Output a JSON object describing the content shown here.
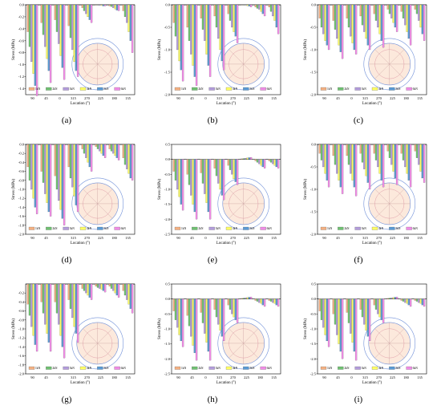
{
  "figure": {
    "series_colors": [
      "#f4b183",
      "#70c172",
      "#b39ddb",
      "#ffff66",
      "#5b9bd5",
      "#f08de6"
    ]
  },
  "chart_data": [
    {
      "id": "a",
      "caption": "(a)",
      "type": "bar",
      "xlabel": "Location (°)",
      "ylabel": "Stress (MPa)",
      "ylim": [
        -1.5,
        0
      ],
      "yticks": [
        "0.0",
        "-0.2",
        "-0.4",
        "-0.6",
        "-0.8",
        "-1.0",
        "-1.2",
        "-1.4"
      ],
      "categories": [
        "90",
        "45",
        "0",
        "315",
        "270",
        "225",
        "180",
        "135"
      ],
      "series": [
        {
          "name": "1kN",
          "values": [
            -0.45,
            -0.3,
            -0.25,
            -0.35,
            -0.05,
            0.0,
            -0.02,
            -0.1
          ]
        },
        {
          "name": "2kN",
          "values": [
            -0.7,
            -0.5,
            -0.45,
            -0.55,
            -0.1,
            0.0,
            -0.03,
            -0.2
          ]
        },
        {
          "name": "3kN",
          "values": [
            -0.95,
            -0.7,
            -0.65,
            -0.75,
            -0.15,
            -0.01,
            -0.05,
            -0.3
          ]
        },
        {
          "name": "4kN",
          "values": [
            -1.15,
            -0.9,
            -0.85,
            -0.95,
            -0.2,
            -0.01,
            -0.07,
            -0.45
          ]
        },
        {
          "name": "5kN",
          "values": [
            -1.35,
            -1.1,
            -1.05,
            -1.1,
            -0.25,
            -0.02,
            -0.09,
            -0.6
          ]
        },
        {
          "name": "6kN",
          "values": [
            -1.52,
            -1.3,
            -1.25,
            -1.2,
            -0.3,
            -0.02,
            -0.1,
            -0.8
          ]
        }
      ]
    },
    {
      "id": "b",
      "caption": "(b)",
      "type": "bar",
      "xlabel": "Location (°)",
      "ylabel": "Stress (MPa)",
      "ylim": [
        -2.0,
        0
      ],
      "yticks": [
        "0.0",
        "-0.5",
        "-1.0",
        "-1.5",
        "-2.0"
      ],
      "categories": [
        "90",
        "45",
        "0",
        "315",
        "270",
        "225",
        "180",
        "135"
      ],
      "series": [
        {
          "name": "1kN",
          "values": [
            -0.4,
            -0.5,
            -0.3,
            -0.25,
            -0.2,
            0.0,
            -0.05,
            -0.05
          ]
        },
        {
          "name": "2kN",
          "values": [
            -0.7,
            -0.8,
            -0.55,
            -0.5,
            -0.35,
            0.0,
            -0.08,
            -0.15
          ]
        },
        {
          "name": "3kN",
          "values": [
            -1.0,
            -1.1,
            -0.8,
            -0.75,
            -0.5,
            0.0,
            -0.1,
            -0.25
          ]
        },
        {
          "name": "4kN",
          "values": [
            -1.25,
            -1.35,
            -1.1,
            -1.0,
            -0.6,
            -0.02,
            -0.15,
            -0.35
          ]
        },
        {
          "name": "5kN",
          "values": [
            -1.45,
            -1.6,
            -1.35,
            -1.25,
            -0.7,
            -0.03,
            -0.2,
            -0.5
          ]
        },
        {
          "name": "6kN",
          "values": [
            -1.7,
            -1.8,
            -1.6,
            -1.45,
            -0.85,
            -0.05,
            -0.25,
            -0.65
          ]
        }
      ]
    },
    {
      "id": "c",
      "caption": "(c)",
      "type": "bar",
      "xlabel": "Location (°)",
      "ylabel": "Stress (MPa)",
      "ylim": [
        -2.0,
        0
      ],
      "yticks": [
        "0.0",
        "-0.5",
        "-1.0",
        "-1.5",
        "-2.0"
      ],
      "categories": [
        "90",
        "45",
        "0",
        "315",
        "270",
        "225",
        "180",
        "135"
      ],
      "series": [
        {
          "name": "1kN",
          "values": [
            -0.3,
            -0.35,
            -0.3,
            -0.25,
            -0.2,
            -0.1,
            -0.15,
            -0.1
          ]
        },
        {
          "name": "2kN",
          "values": [
            -0.5,
            -0.55,
            -0.5,
            -0.45,
            -0.35,
            -0.2,
            -0.3,
            -0.2
          ]
        },
        {
          "name": "3kN",
          "values": [
            -0.65,
            -0.75,
            -0.7,
            -0.6,
            -0.5,
            -0.3,
            -0.45,
            -0.35
          ]
        },
        {
          "name": "4kN",
          "values": [
            -0.8,
            -0.9,
            -0.85,
            -0.75,
            -0.65,
            -0.4,
            -0.6,
            -0.5
          ]
        },
        {
          "name": "5kN",
          "values": [
            -0.9,
            -1.05,
            -1.0,
            -0.9,
            -0.8,
            -0.5,
            -0.75,
            -0.65
          ]
        },
        {
          "name": "6kN",
          "values": [
            -1.0,
            -1.2,
            -1.1,
            -1.0,
            -0.95,
            -0.6,
            -0.9,
            -0.8
          ]
        }
      ]
    },
    {
      "id": "d",
      "caption": "(d)",
      "type": "bar",
      "xlabel": "Location (°)",
      "ylabel": "Stress (MPa)",
      "ylim": [
        -2.0,
        0
      ],
      "yticks": [
        "0.0",
        "-0.2",
        "-0.4",
        "-0.6",
        "-0.8",
        "-1.0",
        "-1.2",
        "-1.4",
        "-1.6",
        "-1.8",
        "-2.0"
      ],
      "categories": [
        "90",
        "45",
        "0",
        "315",
        "270",
        "225",
        "180",
        "135"
      ],
      "series": [
        {
          "name": "1kN",
          "values": [
            -0.5,
            -0.6,
            -0.7,
            -0.5,
            -0.1,
            -0.05,
            -0.1,
            -0.3
          ]
        },
        {
          "name": "2kN",
          "values": [
            -0.8,
            -0.85,
            -1.0,
            -0.75,
            -0.2,
            -0.1,
            -0.15,
            -0.45
          ]
        },
        {
          "name": "3kN",
          "values": [
            -1.0,
            -1.1,
            -1.25,
            -0.95,
            -0.3,
            -0.15,
            -0.2,
            -0.55
          ]
        },
        {
          "name": "4kN",
          "values": [
            -1.2,
            -1.3,
            -1.45,
            -1.15,
            -0.4,
            -0.2,
            -0.25,
            -0.65
          ]
        },
        {
          "name": "5kN",
          "values": [
            -1.4,
            -1.5,
            -1.65,
            -1.35,
            -0.5,
            -0.25,
            -0.3,
            -0.75
          ]
        },
        {
          "name": "6kN",
          "values": [
            -1.55,
            -1.6,
            -1.8,
            -1.5,
            -0.6,
            -0.3,
            -0.35,
            -0.8
          ]
        }
      ]
    },
    {
      "id": "e",
      "caption": "(e)",
      "type": "bar",
      "xlabel": "Location (°)",
      "ylabel": "Stress (MPa)",
      "ylim": [
        -2.5,
        0.5
      ],
      "yticks": [
        "0.5",
        "0.0",
        "-0.5",
        "-1.0",
        "-1.5",
        "-2.0",
        "-2.5"
      ],
      "categories": [
        "90",
        "45",
        "0",
        "315",
        "270",
        "225",
        "180",
        "135"
      ],
      "series": [
        {
          "name": "1kN",
          "values": [
            -0.4,
            -0.5,
            -0.45,
            -0.3,
            -0.2,
            0.02,
            -0.05,
            -0.05
          ]
        },
        {
          "name": "2kN",
          "values": [
            -0.7,
            -0.85,
            -0.8,
            -0.55,
            -0.35,
            0.03,
            -0.1,
            -0.1
          ]
        },
        {
          "name": "3kN",
          "values": [
            -1.0,
            -1.2,
            -1.15,
            -0.8,
            -0.5,
            0.04,
            -0.15,
            -0.15
          ]
        },
        {
          "name": "4kN",
          "values": [
            -1.25,
            -1.5,
            -1.45,
            -1.0,
            -0.65,
            0.05,
            -0.2,
            -0.2
          ]
        },
        {
          "name": "5kN",
          "values": [
            -1.5,
            -1.75,
            -1.75,
            -1.2,
            -0.75,
            0.06,
            -0.25,
            -0.25
          ]
        },
        {
          "name": "6kN",
          "values": [
            -1.7,
            -2.0,
            -2.0,
            -1.35,
            -0.85,
            0.07,
            -0.3,
            -0.3
          ]
        }
      ]
    },
    {
      "id": "f",
      "caption": "(f)",
      "type": "bar",
      "xlabel": "Location (°)",
      "ylabel": "Stress (MPa)",
      "ylim": [
        -2.0,
        0
      ],
      "yticks": [
        "0.0",
        "-0.5",
        "-1.0",
        "-1.5",
        "-2.0"
      ],
      "categories": [
        "90",
        "45",
        "0",
        "315",
        "270",
        "225",
        "180",
        "135"
      ],
      "series": [
        {
          "name": "1kN",
          "values": [
            -0.2,
            -0.25,
            -0.25,
            -0.2,
            -0.2,
            -0.15,
            -0.2,
            -0.15
          ]
        },
        {
          "name": "2kN",
          "values": [
            -0.35,
            -0.45,
            -0.45,
            -0.4,
            -0.35,
            -0.3,
            -0.35,
            -0.3
          ]
        },
        {
          "name": "3kN",
          "values": [
            -0.5,
            -0.65,
            -0.65,
            -0.55,
            -0.5,
            -0.45,
            -0.5,
            -0.45
          ]
        },
        {
          "name": "4kN",
          "values": [
            -0.65,
            -0.8,
            -0.8,
            -0.7,
            -0.65,
            -0.6,
            -0.65,
            -0.6
          ]
        },
        {
          "name": "5kN",
          "values": [
            -0.8,
            -0.95,
            -0.95,
            -0.85,
            -0.8,
            -0.75,
            -0.8,
            -0.75
          ]
        },
        {
          "name": "6kN",
          "values": [
            -0.95,
            -1.1,
            -1.15,
            -1.0,
            -0.95,
            -0.9,
            -0.95,
            -0.85
          ]
        }
      ]
    },
    {
      "id": "g",
      "caption": "(g)",
      "type": "bar",
      "xlabel": "Location (°)",
      "ylabel": "Stress (MPa)",
      "ylim": [
        -2.0,
        0
      ],
      "yticks": [
        "-0.2",
        "-0.4",
        "-0.6",
        "-0.8",
        "-1.0",
        "-1.2",
        "-1.4",
        "-1.6",
        "-1.8",
        "-2.0"
      ],
      "categories": [
        "90",
        "45",
        "0",
        "315",
        "270",
        "225",
        "180",
        "135"
      ],
      "series": [
        {
          "name": "1kN",
          "values": [
            -0.45,
            -0.4,
            -0.4,
            -0.35,
            -0.1,
            -0.05,
            -0.05,
            -0.15
          ]
        },
        {
          "name": "2kN",
          "values": [
            -0.7,
            -0.65,
            -0.65,
            -0.55,
            -0.15,
            -0.08,
            -0.1,
            -0.25
          ]
        },
        {
          "name": "3kN",
          "values": [
            -0.95,
            -0.9,
            -0.9,
            -0.75,
            -0.2,
            -0.1,
            -0.15,
            -0.35
          ]
        },
        {
          "name": "4kN",
          "values": [
            -1.15,
            -1.1,
            -1.15,
            -0.95,
            -0.25,
            -0.12,
            -0.2,
            -0.45
          ]
        },
        {
          "name": "5kN",
          "values": [
            -1.35,
            -1.3,
            -1.4,
            -1.1,
            -0.3,
            -0.15,
            -0.25,
            -0.55
          ]
        },
        {
          "name": "6kN",
          "values": [
            -1.5,
            -1.5,
            -1.65,
            -1.3,
            -0.35,
            -0.18,
            -0.3,
            -0.65
          ]
        }
      ]
    },
    {
      "id": "h",
      "caption": "(h)",
      "type": "bar",
      "xlabel": "Location (°)",
      "ylabel": "Stress (MPa)",
      "ylim": [
        -2.5,
        0.5
      ],
      "yticks": [
        "0.5",
        "0.0",
        "-0.5",
        "-1.0",
        "-1.5",
        "-2.0",
        "-2.5"
      ],
      "categories": [
        "90",
        "45",
        "0",
        "315",
        "270",
        "225",
        "180",
        "135"
      ],
      "series": [
        {
          "name": "1kN",
          "values": [
            -0.4,
            -0.55,
            -0.45,
            -0.35,
            -0.2,
            0.02,
            -0.05,
            -0.05
          ]
        },
        {
          "name": "2kN",
          "values": [
            -0.7,
            -0.9,
            -0.8,
            -0.6,
            -0.35,
            0.03,
            -0.08,
            -0.08
          ]
        },
        {
          "name": "3kN",
          "values": [
            -0.95,
            -1.25,
            -1.15,
            -0.85,
            -0.5,
            0.04,
            -0.12,
            -0.12
          ]
        },
        {
          "name": "4kN",
          "values": [
            -1.2,
            -1.55,
            -1.45,
            -1.05,
            -0.6,
            0.05,
            -0.15,
            -0.15
          ]
        },
        {
          "name": "5kN",
          "values": [
            -1.4,
            -1.8,
            -1.75,
            -1.25,
            -0.7,
            0.06,
            -0.2,
            -0.2
          ]
        },
        {
          "name": "6kN",
          "values": [
            -1.6,
            -2.05,
            -2.05,
            -1.4,
            -0.8,
            0.07,
            -0.25,
            -0.25
          ]
        }
      ]
    },
    {
      "id": "i",
      "caption": "(i)",
      "type": "bar",
      "xlabel": "Location (°)",
      "ylabel": "Stress (MPa)",
      "ylim": [
        -2.5,
        0.5
      ],
      "yticks": [
        "0.5",
        "0.0",
        "-0.5",
        "-1.0",
        "-1.5",
        "-2.0",
        "-2.5"
      ],
      "categories": [
        "90",
        "45",
        "0",
        "315",
        "270",
        "225",
        "180",
        "135"
      ],
      "series": [
        {
          "name": "1kN",
          "values": [
            -0.4,
            -0.5,
            -0.45,
            -0.35,
            -0.2,
            0.02,
            -0.05,
            -0.05
          ]
        },
        {
          "name": "2kN",
          "values": [
            -0.7,
            -0.85,
            -0.8,
            -0.6,
            -0.35,
            0.03,
            -0.08,
            -0.08
          ]
        },
        {
          "name": "3kN",
          "values": [
            -0.95,
            -1.2,
            -1.15,
            -0.85,
            -0.5,
            0.04,
            -0.12,
            -0.12
          ]
        },
        {
          "name": "4kN",
          "values": [
            -1.2,
            -1.5,
            -1.45,
            -1.05,
            -0.6,
            0.05,
            -0.15,
            -0.15
          ]
        },
        {
          "name": "5kN",
          "values": [
            -1.4,
            -1.75,
            -1.75,
            -1.25,
            -0.7,
            0.06,
            -0.2,
            -0.2
          ]
        },
        {
          "name": "6kN",
          "values": [
            -1.6,
            -2.0,
            -2.05,
            -1.4,
            -0.8,
            0.07,
            -0.25,
            -0.25
          ]
        }
      ]
    }
  ]
}
